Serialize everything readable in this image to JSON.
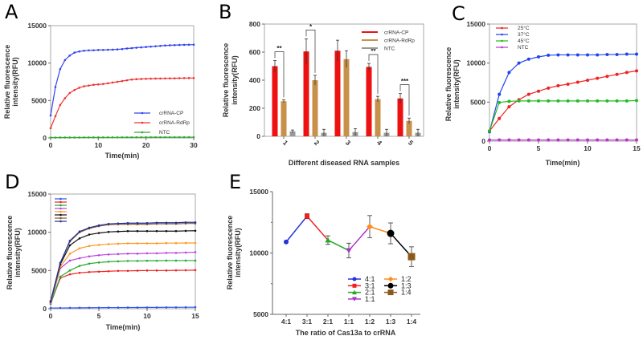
{
  "chart_data": [
    {
      "panel": "A",
      "type": "line",
      "xlabel": "Time(min)",
      "ylabel_lines": [
        "Relative fluorescence",
        "intensity(RFU)"
      ],
      "xlim": [
        0,
        30
      ],
      "ylim": [
        0,
        15000
      ],
      "xticks": [
        0,
        10,
        20,
        30
      ],
      "yticks": [
        0,
        5000,
        10000,
        15000
      ],
      "legend_position": "bottom-right",
      "x": [
        0,
        1,
        2,
        3,
        4,
        5,
        6,
        7,
        8,
        9,
        10,
        11,
        12,
        13,
        14,
        15,
        16,
        17,
        18,
        19,
        20,
        21,
        22,
        23,
        24,
        25,
        26,
        27,
        28,
        29,
        30
      ],
      "series": [
        {
          "name": "crRNA-CP",
          "color": "#3344ee",
          "values": [
            3000,
            6800,
            9200,
            10400,
            11000,
            11400,
            11550,
            11650,
            11700,
            11720,
            11750,
            11760,
            11780,
            11800,
            11830,
            11870,
            11950,
            12000,
            12050,
            12100,
            12150,
            12200,
            12250,
            12300,
            12350,
            12380,
            12400,
            12420,
            12440,
            12450,
            12460
          ]
        },
        {
          "name": "crRNA-RdRp",
          "color": "#ee3333",
          "values": [
            1300,
            2900,
            4400,
            5300,
            6000,
            6400,
            6700,
            6900,
            7000,
            7100,
            7150,
            7200,
            7300,
            7400,
            7500,
            7600,
            7700,
            7800,
            7850,
            7880,
            7900,
            7920,
            7930,
            7940,
            7950,
            7960,
            7970,
            7980,
            7990,
            8000,
            8000
          ]
        },
        {
          "name": "NTC",
          "color": "#33aa33",
          "values": [
            50,
            50,
            55,
            55,
            60,
            60,
            60,
            65,
            65,
            70,
            70,
            70,
            75,
            75,
            75,
            80,
            80,
            80,
            85,
            85,
            85,
            90,
            90,
            90,
            95,
            95,
            95,
            100,
            100,
            100,
            100
          ]
        }
      ]
    },
    {
      "panel": "B",
      "type": "bar",
      "xlabel": "Different diseased RNA samples",
      "ylabel_lines": [
        "Relative fluorescence",
        "intensity(RFU)"
      ],
      "ylim": [
        0,
        800
      ],
      "yticks": [
        0,
        200,
        400,
        600,
        800
      ],
      "categories": [
        "1",
        "2",
        "3",
        "4",
        "5"
      ],
      "legend_position": "top-right",
      "series": [
        {
          "name": "crRNA-CP",
          "color": "#ee1111",
          "values": [
            500,
            605,
            610,
            495,
            270
          ],
          "errors": [
            40,
            90,
            75,
            25,
            35
          ]
        },
        {
          "name": "crRNA-RdRp",
          "color": "#c8914a",
          "values": [
            250,
            400,
            550,
            265,
            110
          ],
          "errors": [
            10,
            35,
            60,
            20,
            20
          ]
        },
        {
          "name": "NTC",
          "color": "#999999",
          "values": [
            35,
            25,
            30,
            25,
            25
          ],
          "errors": [
            10,
            25,
            25,
            25,
            25
          ]
        }
      ],
      "significance": [
        {
          "category": "1",
          "label": "**"
        },
        {
          "category": "2",
          "label": "*"
        },
        {
          "category": "4",
          "label": "**"
        },
        {
          "category": "5",
          "label": "***"
        }
      ]
    },
    {
      "panel": "C",
      "type": "line",
      "xlabel": "Time(min)",
      "ylabel_lines": [
        "Relative fluorescence",
        "intensity(RFU)"
      ],
      "xlim": [
        0,
        15
      ],
      "ylim": [
        0,
        15000
      ],
      "xticks": [
        0,
        5,
        10,
        15
      ],
      "yticks": [
        0,
        5000,
        10000,
        15000
      ],
      "legend_position": "top-left",
      "x": [
        0,
        1,
        2,
        3,
        4,
        5,
        6,
        7,
        8,
        9,
        10,
        11,
        12,
        13,
        14,
        15
      ],
      "series": [
        {
          "name": "25°C",
          "color": "#ee2222",
          "values": [
            1300,
            2900,
            4400,
            5300,
            6000,
            6400,
            6800,
            7100,
            7300,
            7550,
            7800,
            8050,
            8300,
            8550,
            8800,
            9000
          ]
        },
        {
          "name": "37°C",
          "color": "#2244ee",
          "values": [
            1200,
            6000,
            8800,
            10000,
            10500,
            10800,
            11000,
            11050,
            11050,
            11050,
            11050,
            11050,
            11100,
            11100,
            11150,
            11150
          ]
        },
        {
          "name": "45°C",
          "color": "#22bb22",
          "values": [
            1300,
            4950,
            5100,
            5150,
            5150,
            5150,
            5150,
            5150,
            5150,
            5150,
            5150,
            5150,
            5150,
            5150,
            5150,
            5200
          ]
        },
        {
          "name": "NTC",
          "color": "#bb33cc",
          "values": [
            150,
            150,
            150,
            150,
            150,
            150,
            150,
            150,
            150,
            150,
            150,
            150,
            150,
            150,
            150,
            150
          ]
        }
      ]
    },
    {
      "panel": "D",
      "type": "line",
      "xlabel": "Time(min)",
      "ylabel_lines": [
        "Relative fluorescence",
        "intensity(RFU)"
      ],
      "xlim": [
        0,
        15
      ],
      "ylim": [
        0,
        15000
      ],
      "xticks": [
        0,
        5,
        10,
        15
      ],
      "yticks": [
        0,
        5000,
        10000,
        15000
      ],
      "legend_position": "top-left",
      "x": [
        0,
        1,
        2,
        3,
        4,
        5,
        6,
        7,
        8,
        9,
        10,
        11,
        12,
        13,
        14,
        15
      ],
      "series": [
        {
          "color": "#3355ee",
          "values": [
            100,
            100,
            110,
            120,
            130,
            140,
            150,
            150,
            160,
            160,
            170,
            170,
            180,
            180,
            190,
            200
          ]
        },
        {
          "color": "#ee2222",
          "values": [
            700,
            4000,
            4500,
            4700,
            4800,
            4850,
            4900,
            4950,
            4950,
            4980,
            5000,
            5000,
            5000,
            5020,
            5030,
            5050
          ]
        },
        {
          "color": "#22aa33",
          "values": [
            600,
            4200,
            5000,
            5600,
            5900,
            6050,
            6150,
            6200,
            6250,
            6250,
            6280,
            6280,
            6300,
            6300,
            6300,
            6300
          ]
        },
        {
          "color": "#bb44dd",
          "values": [
            700,
            5300,
            6300,
            6600,
            6850,
            7000,
            7100,
            7150,
            7200,
            7200,
            7250,
            7250,
            7300,
            7300,
            7350,
            7400
          ]
        },
        {
          "color": "#ff9922",
          "values": [
            800,
            5500,
            7200,
            7900,
            8200,
            8350,
            8450,
            8500,
            8550,
            8550,
            8550,
            8550,
            8580,
            8580,
            8600,
            8600
          ]
        },
        {
          "color": "#111111",
          "values": [
            900,
            5800,
            8300,
            9200,
            9700,
            9900,
            10050,
            10100,
            10150,
            10150,
            10150,
            10150,
            10150,
            10150,
            10180,
            10200
          ]
        },
        {
          "color": "#8b5a2b",
          "values": [
            1000,
            6000,
            8800,
            10000,
            10500,
            10800,
            11000,
            11050,
            11050,
            11050,
            11050,
            11100,
            11100,
            11100,
            11150,
            11150
          ]
        },
        {
          "color": "#223399",
          "values": [
            1000,
            6000,
            8900,
            10100,
            10600,
            10900,
            11100,
            11150,
            11200,
            11200,
            11200,
            11250,
            11250,
            11250,
            11300,
            11300
          ]
        }
      ]
    },
    {
      "panel": "E",
      "type": "line",
      "xlabel": "The ratio of Cas13a to crRNA",
      "ylabel_lines": [
        "Relative fluorescence",
        "intensity(RFU)"
      ],
      "ylim": [
        5000,
        15000
      ],
      "yticks": [
        5000,
        10000,
        15000
      ],
      "legend_position": "bottom-right",
      "categories": [
        "4:1",
        "3:1",
        "2:1",
        "1:1",
        "1:2",
        "1:3",
        "1:4"
      ],
      "values": [
        10900,
        13000,
        11050,
        10200,
        12150,
        11600,
        9700
      ],
      "errors": [
        0,
        200,
        350,
        600,
        900,
        850,
        800
      ],
      "colors": [
        "#2233dd",
        "#ee2222",
        "#22aa22",
        "#aa33cc",
        "#ff8c1a",
        "#000000",
        "#8b5a1a"
      ],
      "markers": [
        "circle",
        "square",
        "triangle-up",
        "triangle-down",
        "diamond",
        "circle",
        "square"
      ]
    }
  ],
  "panel_letters": [
    "A",
    "B",
    "C",
    "D",
    "E"
  ]
}
